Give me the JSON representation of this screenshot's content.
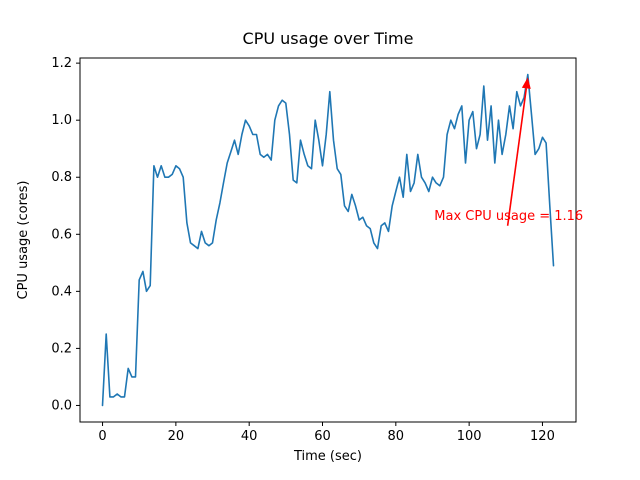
{
  "chart_data": {
    "type": "line",
    "title": "CPU usage over Time",
    "xlabel": "Time (sec)",
    "ylabel": "CPU usage (cores)",
    "line_color": "#1f77b4",
    "grid": false,
    "legend": "none",
    "xlim": [
      -6.15,
      129.15
    ],
    "ylim": [
      -0.058,
      1.218
    ],
    "x_ticks": [
      0,
      20,
      40,
      60,
      80,
      100,
      120
    ],
    "y_ticks": [
      0.0,
      0.2,
      0.4,
      0.6,
      0.8,
      1.0,
      1.2
    ],
    "x": [
      0,
      1,
      2,
      3,
      4,
      5,
      6,
      7,
      8,
      9,
      10,
      11,
      12,
      13,
      14,
      15,
      16,
      17,
      18,
      19,
      20,
      21,
      22,
      23,
      24,
      25,
      26,
      27,
      28,
      29,
      30,
      31,
      32,
      33,
      34,
      35,
      36,
      37,
      38,
      39,
      40,
      41,
      42,
      43,
      44,
      45,
      46,
      47,
      48,
      49,
      50,
      51,
      52,
      53,
      54,
      55,
      56,
      57,
      58,
      59,
      60,
      61,
      62,
      63,
      64,
      65,
      66,
      67,
      68,
      69,
      70,
      71,
      72,
      73,
      74,
      75,
      76,
      77,
      78,
      79,
      80,
      81,
      82,
      83,
      84,
      85,
      86,
      87,
      88,
      89,
      90,
      91,
      92,
      93,
      94,
      95,
      96,
      97,
      98,
      99,
      100,
      101,
      102,
      103,
      104,
      105,
      106,
      107,
      108,
      109,
      110,
      111,
      112,
      113,
      114,
      115,
      116,
      117,
      118,
      119,
      120,
      121,
      122,
      123
    ],
    "y": [
      0.0,
      0.25,
      0.03,
      0.03,
      0.04,
      0.03,
      0.03,
      0.13,
      0.1,
      0.1,
      0.44,
      0.47,
      0.4,
      0.42,
      0.84,
      0.8,
      0.84,
      0.8,
      0.8,
      0.81,
      0.84,
      0.83,
      0.8,
      0.64,
      0.57,
      0.56,
      0.55,
      0.61,
      0.57,
      0.56,
      0.57,
      0.65,
      0.71,
      0.78,
      0.85,
      0.89,
      0.93,
      0.88,
      0.95,
      1.0,
      0.98,
      0.95,
      0.95,
      0.88,
      0.87,
      0.88,
      0.86,
      1.0,
      1.05,
      1.07,
      1.06,
      0.95,
      0.79,
      0.78,
      0.93,
      0.88,
      0.84,
      0.83,
      1.0,
      0.93,
      0.84,
      0.95,
      1.1,
      0.93,
      0.83,
      0.81,
      0.7,
      0.68,
      0.74,
      0.7,
      0.65,
      0.66,
      0.63,
      0.62,
      0.57,
      0.55,
      0.63,
      0.64,
      0.61,
      0.7,
      0.75,
      0.8,
      0.73,
      0.88,
      0.75,
      0.78,
      0.88,
      0.8,
      0.78,
      0.75,
      0.8,
      0.78,
      0.77,
      0.8,
      0.95,
      1.0,
      0.97,
      1.02,
      1.05,
      0.85,
      1.0,
      1.03,
      0.9,
      0.95,
      1.12,
      0.93,
      1.05,
      0.85,
      1.0,
      0.88,
      0.95,
      1.05,
      0.97,
      1.1,
      1.05,
      1.08,
      1.16,
      1.02,
      0.88,
      0.9,
      0.94,
      0.92,
      0.7,
      0.49
    ],
    "annotation": {
      "text": "Max CPU usage = 1.16",
      "max_value": 1.16,
      "color": "#ff0000",
      "text_xy": [
        90.5,
        0.65
      ],
      "arrow_start_xy": [
        110.5,
        0.63
      ],
      "arrow_tip_xy": [
        116.0,
        1.15
      ]
    }
  }
}
